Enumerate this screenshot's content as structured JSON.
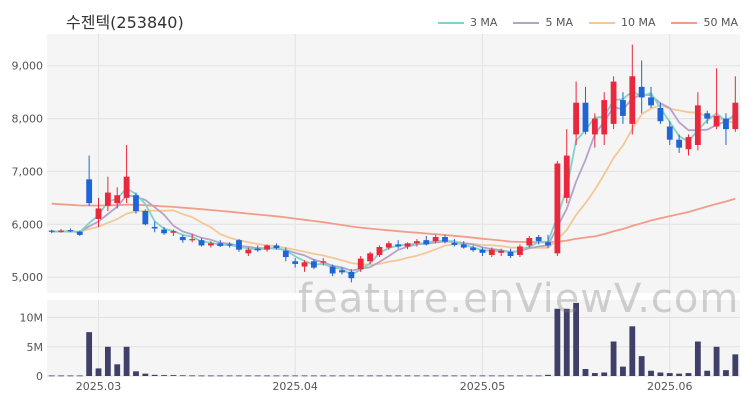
{
  "chart_data": {
    "type": "candlestick",
    "title": "수젠텍(253840)",
    "legend": [
      {
        "name": "3 MA",
        "color": "#7fd3c9"
      },
      {
        "name": "5 MA",
        "color": "#b5a3c9"
      },
      {
        "name": "10 MA",
        "color": "#f4c896"
      },
      {
        "name": "50 MA",
        "color": "#f29d8a"
      }
    ],
    "price_axis": {
      "ticks": [
        5000,
        6000,
        7000,
        8000,
        9000
      ],
      "tick_labels": [
        "5,000",
        "6,000",
        "7,000",
        "8,000",
        "9,000"
      ],
      "ylim": [
        4700,
        9600
      ]
    },
    "volume_axis": {
      "ticks": [
        0,
        5000000,
        10000000
      ],
      "tick_labels": [
        "0",
        "5M",
        "10M"
      ],
      "ylim": [
        0,
        13000000
      ]
    },
    "x_tick_labels": [
      {
        "label": "2025.03",
        "index": 5
      },
      {
        "label": "2025.04",
        "index": 26
      },
      {
        "label": "2025.05",
        "index": 46
      },
      {
        "label": "2025.06",
        "index": 66
      }
    ],
    "colors": {
      "up": "#e8283d",
      "down": "#1f65d6",
      "volume": "#3f3f68"
    },
    "candles": [
      [
        5880,
        5900,
        5830,
        5860
      ],
      [
        5870,
        5910,
        5840,
        5880
      ],
      [
        5890,
        5920,
        5850,
        5870
      ],
      [
        5860,
        5880,
        5780,
        5800
      ],
      [
        6850,
        7300,
        6350,
        6400
      ],
      [
        6100,
        6500,
        5950,
        6300
      ],
      [
        6350,
        6900,
        6250,
        6600
      ],
      [
        6400,
        6700,
        6300,
        6550
      ],
      [
        6500,
        7500,
        6400,
        6900
      ],
      [
        6550,
        6600,
        6200,
        6250
      ],
      [
        6250,
        6280,
        5980,
        6000
      ],
      [
        5950,
        6050,
        5850,
        5920
      ],
      [
        5900,
        5950,
        5800,
        5830
      ],
      [
        5840,
        5900,
        5780,
        5870
      ],
      [
        5760,
        5800,
        5650,
        5700
      ],
      [
        5700,
        5820,
        5660,
        5720
      ],
      [
        5700,
        5740,
        5580,
        5600
      ],
      [
        5600,
        5680,
        5560,
        5640
      ],
      [
        5640,
        5700,
        5570,
        5590
      ],
      [
        5620,
        5660,
        5560,
        5600
      ],
      [
        5700,
        5720,
        5480,
        5520
      ],
      [
        5450,
        5560,
        5400,
        5520
      ],
      [
        5540,
        5600,
        5480,
        5510
      ],
      [
        5520,
        5620,
        5480,
        5600
      ],
      [
        5600,
        5640,
        5520,
        5550
      ],
      [
        5500,
        5560,
        5300,
        5380
      ],
      [
        5300,
        5360,
        5180,
        5250
      ],
      [
        5200,
        5320,
        5100,
        5280
      ],
      [
        5300,
        5340,
        5150,
        5180
      ],
      [
        5280,
        5360,
        5220,
        5300
      ],
      [
        5200,
        5240,
        5020,
        5070
      ],
      [
        5130,
        5180,
        5050,
        5090
      ],
      [
        5100,
        5150,
        4900,
        4980
      ],
      [
        5150,
        5400,
        5100,
        5350
      ],
      [
        5300,
        5480,
        5250,
        5450
      ],
      [
        5420,
        5600,
        5380,
        5570
      ],
      [
        5560,
        5680,
        5520,
        5640
      ],
      [
        5620,
        5700,
        5540,
        5580
      ],
      [
        5580,
        5660,
        5530,
        5640
      ],
      [
        5640,
        5720,
        5580,
        5680
      ],
      [
        5700,
        5780,
        5600,
        5620
      ],
      [
        5680,
        5800,
        5640,
        5760
      ],
      [
        5760,
        5800,
        5640,
        5670
      ],
      [
        5650,
        5720,
        5580,
        5610
      ],
      [
        5620,
        5680,
        5540,
        5560
      ],
      [
        5560,
        5600,
        5480,
        5510
      ],
      [
        5520,
        5560,
        5400,
        5460
      ],
      [
        5420,
        5560,
        5380,
        5520
      ],
      [
        5460,
        5540,
        5400,
        5500
      ],
      [
        5480,
        5540,
        5360,
        5400
      ],
      [
        5420,
        5620,
        5380,
        5580
      ],
      [
        5600,
        5780,
        5560,
        5740
      ],
      [
        5760,
        5800,
        5620,
        5680
      ],
      [
        5660,
        5800,
        5550,
        5600
      ],
      [
        5450,
        7200,
        5400,
        7150
      ],
      [
        6500,
        7800,
        6400,
        7300
      ],
      [
        7700,
        8700,
        7500,
        8300
      ],
      [
        8300,
        8600,
        7700,
        7750
      ],
      [
        7700,
        8100,
        7450,
        8000
      ],
      [
        7700,
        8500,
        7500,
        8350
      ],
      [
        7900,
        8800,
        7800,
        8700
      ],
      [
        8350,
        8500,
        7900,
        8050
      ],
      [
        7900,
        9400,
        7700,
        8800
      ],
      [
        8600,
        9100,
        8100,
        8400
      ],
      [
        8400,
        8600,
        8200,
        8250
      ],
      [
        8200,
        8300,
        7900,
        7950
      ],
      [
        7850,
        7950,
        7500,
        7600
      ],
      [
        7600,
        7700,
        7350,
        7450
      ],
      [
        7420,
        7700,
        7300,
        7650
      ],
      [
        7500,
        8500,
        7400,
        8250
      ],
      [
        8100,
        8150,
        7900,
        8000
      ],
      [
        7850,
        8950,
        7800,
        8050
      ],
      [
        8000,
        8100,
        7500,
        7800
      ],
      [
        7800,
        8800,
        7750,
        8300
      ]
    ],
    "volumes": [
      90000,
      90000,
      90000,
      90000,
      7500000,
      1300000,
      5000000,
      2000000,
      5000000,
      800000,
      400000,
      200000,
      150000,
      150000,
      120000,
      100000,
      90000,
      90000,
      90000,
      90000,
      90000,
      90000,
      90000,
      90000,
      90000,
      90000,
      90000,
      90000,
      90000,
      90000,
      90000,
      90000,
      90000,
      90000,
      90000,
      90000,
      90000,
      90000,
      90000,
      90000,
      90000,
      90000,
      90000,
      90000,
      90000,
      90000,
      90000,
      90000,
      90000,
      90000,
      90000,
      90000,
      90000,
      200000,
      11500000,
      11500000,
      12500000,
      1200000,
      500000,
      600000,
      5900000,
      1600000,
      8500000,
      3400000,
      900000,
      600000,
      500000,
      400000,
      500000,
      5900000,
      900000,
      5000000,
      1000000,
      3700000
    ]
  }
}
